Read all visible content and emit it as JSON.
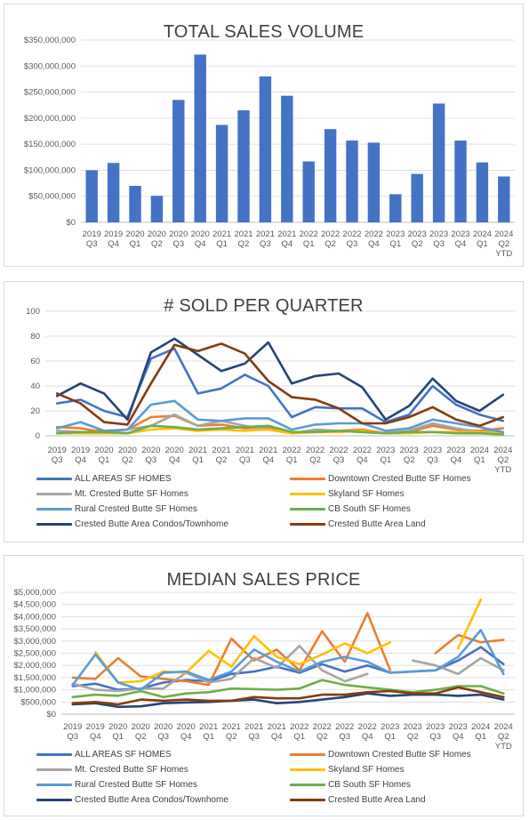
{
  "chart_data": [
    {
      "type": "bar",
      "title": "TOTAL SALES VOLUME",
      "categories": [
        [
          "2019",
          "Q3"
        ],
        [
          "2019",
          "Q4"
        ],
        [
          "2020",
          "Q1"
        ],
        [
          "2020",
          "Q2"
        ],
        [
          "2020",
          "Q3"
        ],
        [
          "2020",
          "Q4"
        ],
        [
          "2021",
          "Q1"
        ],
        [
          "2021",
          "Q2"
        ],
        [
          "2021",
          "Q3"
        ],
        [
          "2021",
          "Q4"
        ],
        [
          "2022",
          "Q1"
        ],
        [
          "2022",
          "Q2"
        ],
        [
          "2022",
          "Q3"
        ],
        [
          "2022",
          "Q4"
        ],
        [
          "2023",
          "Q1"
        ],
        [
          "2023",
          "Q2"
        ],
        [
          "2023",
          "Q3"
        ],
        [
          "2023",
          "Q4"
        ],
        [
          "2024",
          "Q1"
        ],
        [
          "2024",
          "Q2",
          "YTD"
        ]
      ],
      "values": [
        100000000,
        114000000,
        70000000,
        51000000,
        235000000,
        322000000,
        187000000,
        215000000,
        280000000,
        243000000,
        117000000,
        179000000,
        157000000,
        153000000,
        54000000,
        93000000,
        228000000,
        157000000,
        115000000,
        88000000
      ],
      "yticks": [
        "$0",
        "$50,000,000",
        "$100,000,000",
        "$150,000,000",
        "$200,000,000",
        "$250,000,000",
        "$300,000,000",
        "$350,000,000"
      ],
      "ylim": [
        0,
        350000000
      ],
      "color": "#4472C4",
      "grid": true
    },
    {
      "type": "line",
      "title": "# SOLD PER QUARTER",
      "categories": [
        [
          "2019",
          "Q3"
        ],
        [
          "2019",
          "Q4"
        ],
        [
          "2020",
          "Q1"
        ],
        [
          "2020",
          "Q2"
        ],
        [
          "2020",
          "Q3"
        ],
        [
          "2020",
          "Q4"
        ],
        [
          "2021",
          "Q1"
        ],
        [
          "2021",
          "Q2"
        ],
        [
          "2021",
          "Q3"
        ],
        [
          "2021",
          "Q4"
        ],
        [
          "2022",
          "Q1"
        ],
        [
          "2022",
          "Q2"
        ],
        [
          "2022",
          "Q3"
        ],
        [
          "2022",
          "Q4"
        ],
        [
          "2023",
          "Q1"
        ],
        [
          "2023",
          "Q2"
        ],
        [
          "2023",
          "Q3"
        ],
        [
          "2023",
          "Q4"
        ],
        [
          "2024",
          "Q1"
        ],
        [
          "2024",
          "Q2",
          "YTD"
        ]
      ],
      "yticks": [
        "0",
        "20",
        "40",
        "60",
        "80",
        "100"
      ],
      "ylim": [
        0,
        100
      ],
      "legend_position": "bottom",
      "series": [
        {
          "name": "ALL AREAS SF HOMES",
          "color": "#4472C4",
          "values": [
            26,
            29,
            20,
            15,
            62,
            70,
            34,
            38,
            49,
            40,
            15,
            23,
            22,
            22,
            11,
            17,
            40,
            25,
            17,
            12
          ]
        },
        {
          "name": "Downtown Crested Butte SF Homes",
          "color": "#ED7D31",
          "values": [
            7,
            6,
            3,
            5,
            15,
            16,
            8,
            9,
            6,
            7,
            3,
            3,
            4,
            5,
            2,
            3,
            8,
            5,
            4,
            6
          ]
        },
        {
          "name": "Mt. Crested Butte SF Homes",
          "color": "#A5A5A5",
          "values": [
            4,
            3,
            3,
            5,
            8,
            17,
            8,
            12,
            8,
            5,
            2,
            5,
            4,
            3,
            2,
            4,
            10,
            6,
            3,
            3
          ]
        },
        {
          "name": "Skyland SF Homes",
          "color": "#FFC000",
          "values": [
            2,
            2,
            2,
            2,
            5,
            6,
            4,
            5,
            4,
            5,
            2,
            3,
            3,
            4,
            2,
            2,
            3,
            3,
            3,
            2
          ]
        },
        {
          "name": "Rural Crested Butte SF Homes",
          "color": "#5B9BD5",
          "values": [
            6,
            11,
            4,
            5,
            25,
            28,
            13,
            12,
            14,
            14,
            5,
            9,
            10,
            10,
            4,
            6,
            13,
            10,
            7,
            3
          ]
        },
        {
          "name": "CB South SF Homes",
          "color": "#70AD47",
          "values": [
            2,
            3,
            3,
            2,
            8,
            7,
            5,
            6,
            7,
            8,
            3,
            3,
            4,
            3,
            2,
            3,
            3,
            2,
            2,
            1
          ]
        },
        {
          "name": "Crested Butte Area Condos/Townhome",
          "color": "#264478",
          "values": [
            32,
            42,
            34,
            13,
            67,
            78,
            65,
            52,
            58,
            75,
            42,
            48,
            50,
            39,
            13,
            24,
            46,
            28,
            20,
            33
          ]
        },
        {
          "name": "Crested Butte Area Land",
          "color": "#843C0C",
          "values": [
            34,
            26,
            11,
            9,
            42,
            73,
            68,
            74,
            66,
            44,
            31,
            29,
            22,
            10,
            10,
            15,
            23,
            13,
            8,
            15
          ]
        }
      ]
    },
    {
      "type": "line",
      "title": "MEDIAN SALES PRICE",
      "categories": [
        [
          "2019",
          "Q3"
        ],
        [
          "2019",
          "Q4"
        ],
        [
          "2020",
          "Q1"
        ],
        [
          "2020",
          "Q2"
        ],
        [
          "2020",
          "Q3"
        ],
        [
          "2020",
          "Q4"
        ],
        [
          "2021",
          "Q1"
        ],
        [
          "2021",
          "Q2"
        ],
        [
          "2021",
          "Q3"
        ],
        [
          "2021",
          "Q4"
        ],
        [
          "2022",
          "Q1"
        ],
        [
          "2022",
          "Q2"
        ],
        [
          "2022",
          "Q3"
        ],
        [
          "2022",
          "Q4"
        ],
        [
          "2023",
          "Q1"
        ],
        [
          "2023",
          "Q2"
        ],
        [
          "2023",
          "Q3"
        ],
        [
          "2023",
          "Q4"
        ],
        [
          "2024",
          "Q1"
        ],
        [
          "2024",
          "Q2",
          "YTD"
        ]
      ],
      "yticks": [
        "$0",
        "$500,000",
        "$1,000,000",
        "$1,500,000",
        "$2,000,000",
        "$2,500,000",
        "$3,000,000",
        "$3,500,000",
        "$4,000,000",
        "$4,500,000",
        "$5,000,000"
      ],
      "ylim": [
        0,
        5000000
      ],
      "legend_position": "bottom",
      "series": [
        {
          "name": "ALL AREAS SF HOMES",
          "color": "#4472C4",
          "values": [
            1150000,
            1250000,
            1000000,
            1050000,
            1300000,
            1400000,
            1350000,
            1650000,
            1750000,
            1950000,
            1700000,
            2050000,
            1750000,
            2000000,
            1700000,
            1750000,
            1800000,
            2200000,
            2750000,
            2050000
          ]
        },
        {
          "name": "Downtown Crested Butte SF Homes",
          "color": "#ED7D31",
          "values": [
            1500000,
            1450000,
            2300000,
            1550000,
            1450000,
            1350000,
            1200000,
            3100000,
            2200000,
            2650000,
            1800000,
            3400000,
            2150000,
            4150000,
            1800000,
            null,
            2500000,
            3250000,
            2950000,
            3050000
          ]
        },
        {
          "name": "Mt. Crested Butte SF Homes",
          "color": "#A5A5A5",
          "values": [
            1250000,
            1000000,
            950000,
            1050000,
            1050000,
            1700000,
            1300000,
            1450000,
            2300000,
            1900000,
            2800000,
            1800000,
            1350000,
            1650000,
            null,
            2200000,
            2000000,
            1650000,
            2300000,
            1800000
          ]
        },
        {
          "name": "Skyland SF Homes",
          "color": "#FFC000",
          "values": [
            null,
            2550000,
            1300000,
            1350000,
            1750000,
            1700000,
            2600000,
            1950000,
            3200000,
            2350000,
            2050000,
            2450000,
            2900000,
            2500000,
            2950000,
            null,
            null,
            2700000,
            4700000,
            null
          ]
        },
        {
          "name": "Rural Crested Butte SF Homes",
          "color": "#5B9BD5",
          "values": [
            1200000,
            2450000,
            1300000,
            1000000,
            1700000,
            1750000,
            1400000,
            1750000,
            2650000,
            2150000,
            1750000,
            2150000,
            2350000,
            2150000,
            1700000,
            1750000,
            1800000,
            2350000,
            3450000,
            1650000
          ]
        },
        {
          "name": "CB South SF Homes",
          "color": "#70AD47",
          "values": [
            700000,
            800000,
            750000,
            950000,
            700000,
            850000,
            900000,
            1050000,
            1030000,
            1000000,
            1050000,
            1400000,
            1200000,
            1100000,
            1000000,
            900000,
            1000000,
            1150000,
            1150000,
            850000
          ]
        },
        {
          "name": "Crested Butte Area Condos/Townhome",
          "color": "#264478",
          "values": [
            400000,
            450000,
            300000,
            320000,
            450000,
            480000,
            500000,
            550000,
            600000,
            450000,
            500000,
            600000,
            700000,
            850000,
            750000,
            800000,
            800000,
            750000,
            800000,
            600000
          ]
        },
        {
          "name": "Crested Butte Area Land",
          "color": "#843C0C",
          "values": [
            450000,
            500000,
            400000,
            600000,
            550000,
            600000,
            550000,
            550000,
            700000,
            650000,
            650000,
            800000,
            800000,
            900000,
            950000,
            850000,
            850000,
            1100000,
            900000,
            700000
          ]
        }
      ]
    }
  ]
}
